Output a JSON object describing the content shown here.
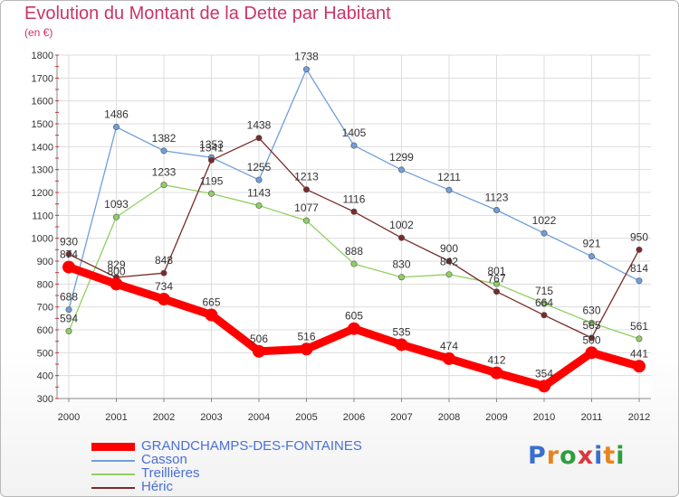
{
  "title": "Evolution du Montant de la Dette par Habitant",
  "subtitle": "(en €)",
  "logo": {
    "text": "Proxiti",
    "colors": [
      "#3a6fd0",
      "#e8831f",
      "#2e9e3e",
      "#d63a3a",
      "#3a6fd0",
      "#e8831f",
      "#2e9e3e"
    ]
  },
  "chart_data": {
    "type": "line",
    "title": "Evolution du Montant de la Dette par Habitant",
    "ylabel": "(en €)",
    "xlabel": "",
    "x": [
      "2000",
      "2001",
      "2002",
      "2003",
      "2004",
      "2005",
      "2006",
      "2007",
      "2008",
      "2009",
      "2010",
      "2011",
      "2012"
    ],
    "ylim": [
      300,
      1800
    ],
    "yticks": [
      "300",
      "400",
      "500",
      "600",
      "700",
      "800",
      "900",
      "1000",
      "1100",
      "1200",
      "1300",
      "1400",
      "1500",
      "1600",
      "1700",
      "1800"
    ],
    "legend_position": "bottom-left",
    "grid": true,
    "series": [
      {
        "name": "GRANDCHAMPS-DES-FONTAINES",
        "color": "#ff0000",
        "values": [
          874,
          800,
          734,
          665,
          506,
          516,
          605,
          535,
          474,
          412,
          354,
          500,
          441
        ]
      },
      {
        "name": "Casson",
        "color": "#6f9fd8",
        "values": [
          688,
          1486,
          1382,
          1353,
          1255,
          1738,
          1405,
          1299,
          1211,
          1123,
          1022,
          921,
          814
        ]
      },
      {
        "name": "Treillières",
        "color": "#8fd060",
        "values": [
          594,
          1093,
          1233,
          1195,
          1143,
          1077,
          888,
          830,
          842,
          801,
          715,
          630,
          561
        ]
      },
      {
        "name": "Héric",
        "color": "#7a2a2a",
        "values": [
          930,
          829,
          848,
          1341,
          1438,
          1213,
          1116,
          1002,
          900,
          767,
          664,
          565,
          950
        ]
      }
    ]
  }
}
